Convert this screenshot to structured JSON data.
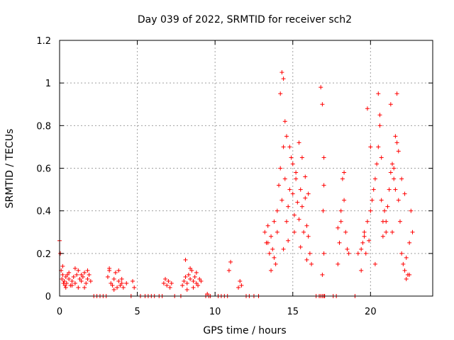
{
  "chart_data": {
    "type": "scatter",
    "title": "Day 039 of 2022, SRMTID for receiver sch2",
    "xlabel": "GPS time / hours",
    "ylabel": "SRMTID / TECUs",
    "xlim": [
      0,
      24
    ],
    "ylim": [
      0,
      1.2
    ],
    "xticks": [
      0,
      5,
      10,
      15,
      20
    ],
    "xtick_labels": [
      "0",
      "5",
      "10",
      "15",
      "20"
    ],
    "yticks": [
      0,
      0.2,
      0.4,
      0.6,
      0.8,
      1.0,
      1.2
    ],
    "ytick_labels": [
      "0",
      "0.2",
      "0.4",
      "0.6",
      "0.8",
      "1",
      "1.2"
    ],
    "grid": true,
    "marker": "+",
    "color": "#ff0000",
    "series": [
      {
        "name": "sch2",
        "x": [
          0.0,
          0.05,
          0.1,
          0.15,
          0.2,
          0.25,
          0.3,
          0.35,
          0.4,
          0.45,
          0.5,
          0.6,
          0.7,
          0.8,
          0.9,
          1.0,
          1.1,
          1.2,
          1.3,
          1.4,
          1.5,
          1.6,
          1.7,
          1.8,
          1.9,
          2.0,
          0.2,
          0.4,
          0.6,
          0.8,
          1.0,
          1.2,
          1.4,
          1.6,
          1.8,
          2.2,
          2.4,
          2.6,
          2.8,
          3.0,
          3.1,
          3.2,
          3.3,
          3.4,
          3.5,
          3.6,
          3.7,
          3.8,
          3.9,
          4.0,
          4.1,
          3.2,
          3.5,
          3.8,
          4.0,
          4.3,
          4.6,
          4.7,
          4.8,
          5.2,
          5.5,
          5.7,
          5.9,
          6.1,
          6.4,
          6.6,
          6.7,
          6.8,
          6.9,
          7.0,
          7.1,
          7.2,
          7.4,
          7.8,
          7.9,
          8.0,
          8.1,
          8.2,
          8.3,
          8.4,
          8.5,
          8.6,
          8.7,
          8.8,
          8.9,
          9.0,
          9.1,
          8.1,
          8.4,
          8.6,
          8.8,
          8.2,
          9.4,
          9.5,
          9.6,
          9.7,
          10.2,
          10.4,
          10.6,
          10.8,
          10.9,
          11.0,
          11.5,
          11.6,
          11.7,
          12.0,
          12.2,
          12.5,
          12.8,
          13.2,
          13.3,
          13.4,
          13.5,
          13.6,
          13.7,
          13.8,
          13.9,
          14.0,
          14.1,
          14.2,
          14.3,
          14.4,
          14.5,
          14.6,
          14.7,
          14.8,
          14.9,
          15.0,
          15.1,
          15.2,
          15.3,
          15.4,
          15.5,
          15.6,
          15.7,
          15.8,
          15.9,
          16.0,
          16.1,
          16.2,
          14.3,
          14.4,
          14.2,
          14.5,
          14.6,
          14.8,
          15.0,
          15.2,
          15.4,
          15.6,
          15.8,
          16.0,
          13.4,
          13.6,
          13.8,
          14.0,
          14.4,
          14.7,
          15.1,
          15.5,
          15.9,
          16.5,
          16.7,
          16.8,
          16.9,
          17.0,
          17.05,
          16.9,
          17.0,
          16.95,
          17.0,
          17.0,
          16.9,
          16.8,
          17.6,
          17.8,
          17.9,
          18.0,
          18.1,
          18.2,
          18.3,
          18.4,
          18.5,
          18.6,
          18.3,
          18.1,
          17.9,
          19.0,
          19.2,
          19.4,
          19.5,
          19.6,
          19.7,
          19.8,
          19.9,
          20.0,
          20.1,
          20.2,
          20.3,
          20.4,
          20.5,
          20.6,
          20.7,
          20.8,
          20.9,
          21.0,
          21.1,
          21.2,
          21.3,
          21.4,
          21.5,
          21.6,
          21.7,
          21.8,
          21.9,
          22.0,
          22.1,
          22.2,
          22.3,
          22.4,
          22.5,
          22.6,
          22.7,
          19.8,
          20.0,
          20.5,
          20.6,
          20.7,
          21.3,
          21.5,
          21.6,
          21.7,
          21.8,
          22.0,
          22.2,
          20.3,
          20.8,
          21.0,
          21.4,
          22.3,
          22.5,
          19.4,
          19.6
        ],
        "y": [
          0.26,
          0.2,
          0.12,
          0.08,
          0.1,
          0.06,
          0.07,
          0.05,
          0.09,
          0.06,
          0.1,
          0.08,
          0.05,
          0.07,
          0.09,
          0.06,
          0.1,
          0.12,
          0.08,
          0.07,
          0.09,
          0.11,
          0.06,
          0.08,
          0.1,
          0.07,
          0.14,
          0.04,
          0.11,
          0.05,
          0.13,
          0.04,
          0.1,
          0.04,
          0.12,
          0.0,
          0.0,
          0.0,
          0.0,
          0.0,
          0.09,
          0.12,
          0.06,
          0.05,
          0.08,
          0.11,
          0.04,
          0.07,
          0.05,
          0.06,
          0.04,
          0.13,
          0.03,
          0.12,
          0.08,
          0.06,
          0.0,
          0.07,
          0.04,
          0.0,
          0.0,
          0.0,
          0.0,
          0.0,
          0.0,
          0.0,
          0.06,
          0.08,
          0.05,
          0.07,
          0.04,
          0.06,
          0.0,
          0.0,
          0.05,
          0.07,
          0.09,
          0.06,
          0.1,
          0.08,
          0.12,
          0.07,
          0.09,
          0.06,
          0.05,
          0.08,
          0.07,
          0.17,
          0.13,
          0.04,
          0.11,
          0.03,
          0.0,
          0.01,
          0.0,
          0.0,
          0.0,
          0.0,
          0.0,
          0.0,
          0.12,
          0.16,
          0.04,
          0.07,
          0.05,
          0.0,
          0.0,
          0.0,
          0.0,
          0.3,
          0.25,
          0.33,
          0.2,
          0.28,
          0.22,
          0.35,
          0.15,
          0.4,
          0.52,
          0.6,
          0.45,
          0.7,
          0.55,
          0.35,
          0.42,
          0.5,
          0.65,
          0.48,
          0.38,
          0.55,
          0.44,
          0.36,
          0.5,
          0.42,
          0.3,
          0.46,
          0.33,
          0.28,
          0.2,
          0.15,
          1.05,
          1.02,
          0.95,
          0.82,
          0.75,
          0.7,
          0.62,
          0.58,
          0.72,
          0.65,
          0.56,
          0.48,
          0.25,
          0.12,
          0.18,
          0.3,
          0.22,
          0.26,
          0.3,
          0.23,
          0.17,
          0.0,
          0.0,
          0.0,
          0.0,
          0.0,
          0.0,
          0.1,
          0.2,
          0.4,
          0.52,
          0.65,
          0.9,
          0.98,
          0.0,
          0.0,
          0.32,
          0.25,
          0.4,
          0.55,
          0.58,
          0.3,
          0.22,
          0.2,
          0.45,
          0.35,
          0.15,
          0.0,
          0.2,
          0.22,
          0.25,
          0.3,
          0.2,
          0.35,
          0.26,
          0.4,
          0.45,
          0.5,
          0.55,
          0.62,
          0.7,
          0.8,
          0.45,
          0.35,
          0.4,
          0.3,
          0.42,
          0.5,
          0.58,
          0.62,
          0.55,
          0.5,
          0.72,
          0.45,
          0.35,
          0.2,
          0.15,
          0.12,
          0.18,
          0.1,
          0.25,
          0.4,
          0.3,
          0.88,
          0.7,
          0.95,
          0.85,
          0.65,
          0.9,
          0.6,
          0.75,
          0.95,
          0.68,
          0.55,
          0.48,
          0.15,
          0.28,
          0.35,
          0.3,
          0.08,
          0.1,
          0.12,
          0.28
        ]
      }
    ]
  }
}
